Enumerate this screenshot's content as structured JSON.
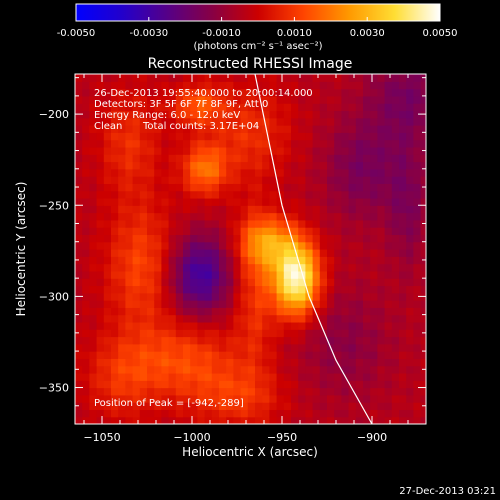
{
  "chart_data": {
    "type": "heatmap",
    "title": "Reconstructed RHESSI Image",
    "xlabel": "Heliocentric X (arcsec)",
    "ylabel": "Heliocentric Y (arcsec)",
    "xlim": [
      -1065,
      -870
    ],
    "ylim": [
      -370,
      -178
    ],
    "x_ticks": [
      -1050,
      -1000,
      -950,
      -900
    ],
    "y_ticks": [
      -350,
      -300,
      -250,
      -200
    ],
    "colorbar": {
      "min": -0.005,
      "max": 0.005,
      "tick_values": [
        -0.005,
        -0.003,
        -0.001,
        0.001,
        0.003,
        0.005
      ],
      "tick_labels": [
        "-0.0050",
        "-0.0030",
        "-0.0010",
        "0.0010",
        "0.0030",
        "0.0050"
      ],
      "unit_label": "(photons cm⁻² s⁻¹ asec⁻²)",
      "colormap": [
        "#0000ff",
        "#2200cc",
        "#550088",
        "#880044",
        "#cc0000",
        "#ff4400",
        "#ff9900",
        "#ffdd33",
        "#ffffff"
      ]
    },
    "annotations": {
      "line1": "26-Dec-2013 19:55:40.000 to 20:00:14.000",
      "line2": "Detectors: 3F 5F 6F 7F 8F 9F, Att 0",
      "line3": "Energy Range: 6.0 - 12.0 keV",
      "line4_left": "Clean",
      "line4_right": "Total counts: 3.17E+04",
      "peak": "Position of Peak = [-942,-289]"
    },
    "peak_position": [
      -942,
      -289
    ],
    "limb_curve": [
      [
        -965,
        -178
      ],
      [
        -950,
        -250
      ],
      [
        -935,
        -300
      ],
      [
        -920,
        -335
      ],
      [
        -900,
        -370
      ]
    ],
    "sources": [
      {
        "x": -942,
        "y": -290,
        "amp": 0.0052,
        "sx": 9,
        "sy": 14
      },
      {
        "x": -957,
        "y": -270,
        "amp": 0.0024,
        "sx": 11,
        "sy": 10
      },
      {
        "x": -993,
        "y": -230,
        "amp": 0.0022,
        "sx": 9,
        "sy": 10
      },
      {
        "x": -997,
        "y": -195,
        "amp": 0.0018,
        "sx": 10,
        "sy": 8
      },
      {
        "x": -968,
        "y": -210,
        "amp": 0.0012,
        "sx": 16,
        "sy": 18
      },
      {
        "x": -1028,
        "y": -283,
        "amp": 0.0016,
        "sx": 14,
        "sy": 24
      },
      {
        "x": -1005,
        "y": -335,
        "amp": 0.0016,
        "sx": 22,
        "sy": 15
      },
      {
        "x": -975,
        "y": -355,
        "amp": 0.0012,
        "sx": 18,
        "sy": 12
      },
      {
        "x": -965,
        "y": -295,
        "amp": 0.0013,
        "sx": 8,
        "sy": 30
      },
      {
        "x": -1035,
        "y": -215,
        "amp": 0.0012,
        "sx": 12,
        "sy": 20
      },
      {
        "x": -1040,
        "y": -345,
        "amp": 0.0011,
        "sx": 14,
        "sy": 16
      }
    ],
    "holes": [
      {
        "x": -996,
        "y": -288,
        "amp": -0.0026,
        "sx": 12,
        "sy": 15
      },
      {
        "x": -880,
        "y": -190,
        "amp": -0.0012,
        "sx": 16,
        "sy": 18
      },
      {
        "x": -905,
        "y": -230,
        "amp": -0.0012,
        "sx": 15,
        "sy": 20
      },
      {
        "x": -880,
        "y": -250,
        "amp": -0.001,
        "sx": 8,
        "sy": 25
      },
      {
        "x": -915,
        "y": -325,
        "amp": -0.0008,
        "sx": 18,
        "sy": 22
      }
    ],
    "background": -0.0004
  },
  "footer": {
    "timestamp": "27-Dec-2013 03:21"
  }
}
